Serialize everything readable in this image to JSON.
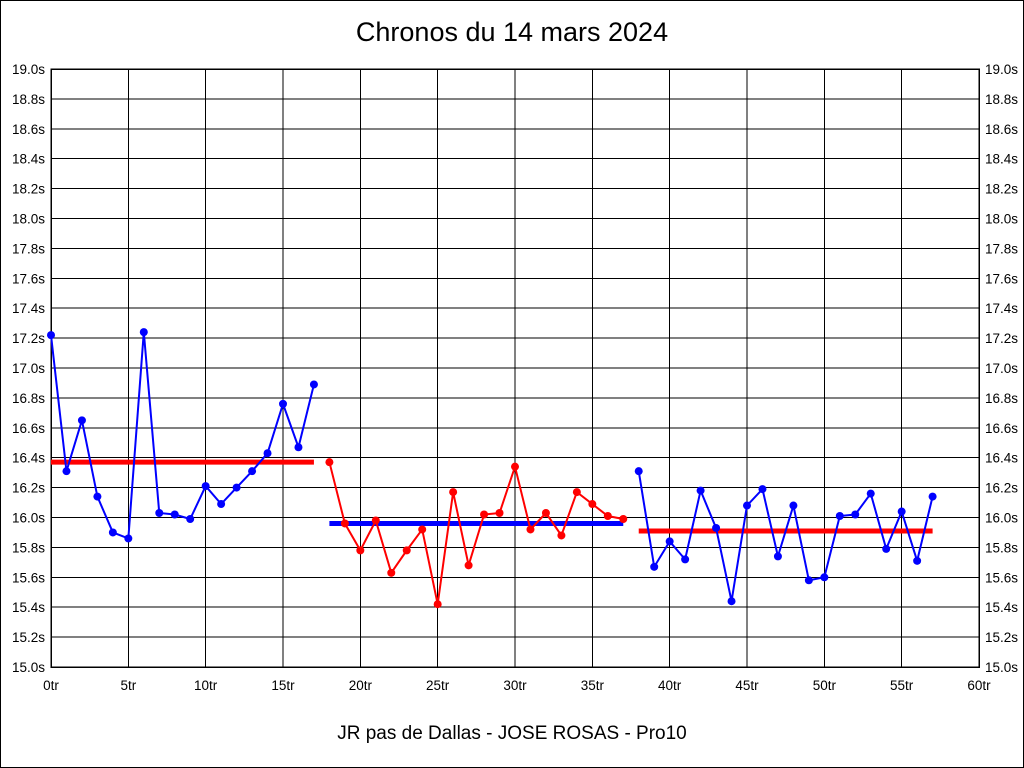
{
  "chart_data": {
    "type": "line",
    "title": "Chronos du 14 mars 2024",
    "footer": "JR pas de Dallas - JOSE ROSAS - Pro10",
    "x_unit": "tr",
    "y_unit": "s",
    "xlim": [
      0,
      60
    ],
    "ylim": [
      15.0,
      19.0
    ],
    "grid": true,
    "colors": {
      "blue": "#0000ff",
      "red": "#ff0000",
      "axis": "#000000"
    },
    "x_ticks": {
      "values": [
        0,
        5,
        10,
        15,
        20,
        25,
        30,
        35,
        40,
        45,
        50,
        55,
        60
      ],
      "labels": [
        "0tr",
        "5tr",
        "10tr",
        "15tr",
        "20tr",
        "25tr",
        "30tr",
        "35tr",
        "40tr",
        "45tr",
        "50tr",
        "55tr",
        "60tr"
      ]
    },
    "y_ticks": {
      "values": [
        19.0,
        18.8,
        18.6,
        18.4,
        18.2,
        18.0,
        17.8,
        17.6,
        17.4,
        17.2,
        17.0,
        16.8,
        16.6,
        16.4,
        16.2,
        16.0,
        15.8,
        15.6,
        15.4,
        15.2,
        15.0
      ],
      "labels": [
        "19.0s",
        "18.8s",
        "18.6s",
        "18.4s",
        "18.2s",
        "18.0s",
        "17.8s",
        "17.6s",
        "17.4s",
        "17.2s",
        "17.0s",
        "16.8s",
        "16.6s",
        "16.4s",
        "16.2s",
        "16.0s",
        "15.8s",
        "15.6s",
        "15.4s",
        "15.2s",
        "15.0s"
      ]
    },
    "series": [
      {
        "name": "stint-1-laps",
        "color": "#0000ff",
        "start_x": 0,
        "values": [
          17.22,
          16.31,
          16.65,
          16.14,
          15.9,
          15.86,
          17.24,
          16.03,
          16.02,
          15.99,
          16.21,
          16.09,
          16.2,
          16.31,
          16.43,
          16.76,
          16.47,
          16.89
        ]
      },
      {
        "name": "stint-2-laps",
        "color": "#ff0000",
        "start_x": 18,
        "values": [
          16.37,
          15.96,
          15.78,
          15.98,
          15.63,
          15.78,
          15.92,
          15.42,
          16.17,
          15.68,
          16.02,
          16.03,
          16.34,
          15.92,
          16.03,
          15.88,
          16.17,
          16.09,
          16.01,
          15.99
        ]
      },
      {
        "name": "stint-3-laps",
        "color": "#0000ff",
        "start_x": 38,
        "values": [
          16.31,
          15.67,
          15.84,
          15.72,
          16.18,
          15.93,
          15.44,
          16.08,
          16.19,
          15.74,
          16.08,
          15.58,
          15.6,
          16.01,
          16.02,
          16.16,
          15.79,
          16.04,
          15.71,
          16.14
        ]
      }
    ],
    "average_lines": [
      {
        "name": "stint-1-average",
        "color": "#ff0000",
        "value": 16.37,
        "x_start": 0,
        "x_end": 17
      },
      {
        "name": "stint-2-average",
        "color": "#0000ff",
        "value": 15.96,
        "x_start": 18,
        "x_end": 37
      },
      {
        "name": "stint-3-average",
        "color": "#ff0000",
        "value": 15.91,
        "x_start": 38,
        "x_end": 57
      }
    ]
  }
}
